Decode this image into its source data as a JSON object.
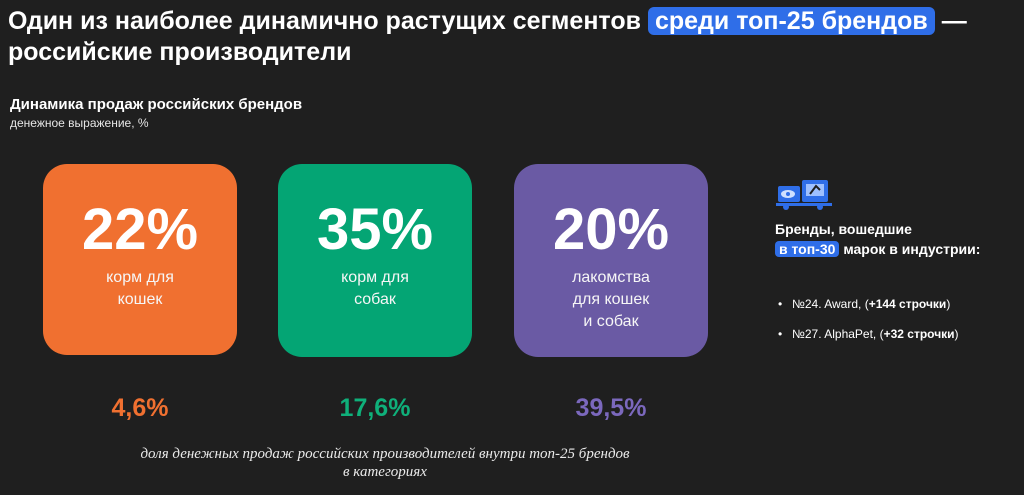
{
  "headline": {
    "pre": "Один из наиболее динамично растущих сегментов",
    "highlight": "среди топ-25 брендов",
    "post": "— российские производители"
  },
  "section": {
    "title": "Динамика продаж российских брендов",
    "subtitle": "денежное выражение, %"
  },
  "cards": [
    {
      "value": "22%",
      "line1": "корм для",
      "line2": "кошек",
      "line3": "",
      "share": "4,6%",
      "color": "#f07030"
    },
    {
      "value": "35%",
      "line1": "корм для",
      "line2": "собак",
      "line3": "",
      "share": "17,6%",
      "color": "#04a574"
    },
    {
      "value": "20%",
      "line1": "лакомства",
      "line2": "для кошек",
      "line3": "и собак",
      "share": "39,5%",
      "color": "#6a5aa4"
    }
  ],
  "footnote": {
    "line1": "доля денежных продаж российских производителей внутри топ-25 брендов",
    "line2": "в категориях"
  },
  "side": {
    "icon": "trucks-icon",
    "title_line1": "Бренды, вошедшие",
    "title_highlight": "в топ-30",
    "title_line2_rest": "марок в индустрии:",
    "brands": [
      {
        "bullet": "•",
        "text": "№24. Award, (",
        "bold": "+144 строчки",
        "close": ")"
      },
      {
        "bullet": "•",
        "text": "№27. AlphaPet, (",
        "bold": "+32 строчки",
        "close": ")"
      }
    ]
  }
}
